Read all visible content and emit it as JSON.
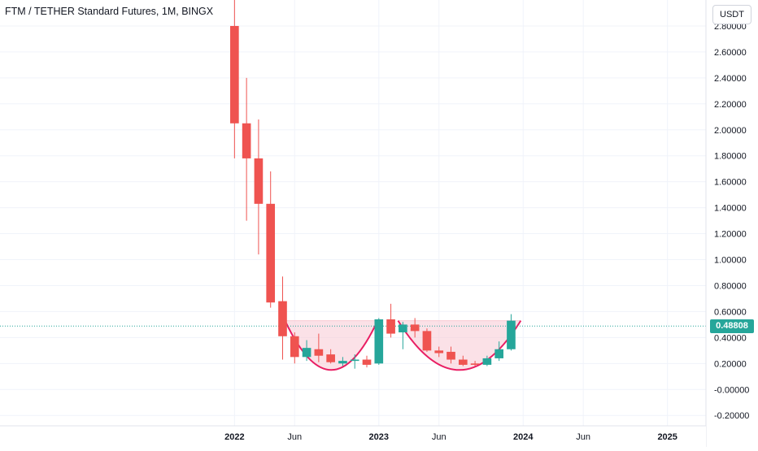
{
  "header": {
    "title": "FTM / TETHER Standard Futures, 1M, BINGX",
    "currency": "USDT"
  },
  "colors": {
    "up": "#26a69a",
    "down": "#ef5350",
    "pattern_fill": "#f8c9d3",
    "pattern_stroke": "#e91e63",
    "grid": "#f0f3fa",
    "price_line": "#26a69a",
    "axis_text": "#131722"
  },
  "chart_data": {
    "type": "candlestick",
    "symbol": "FTM / TETHER Standard Futures",
    "interval": "1M",
    "exchange": "BINGX",
    "y_axis": {
      "ticks": [
        "-0.20000",
        "-0.00000",
        "0.20000",
        "0.40000",
        "0.60000",
        "0.80000",
        "1.00000",
        "1.20000",
        "1.40000",
        "1.60000",
        "1.80000",
        "2.00000",
        "2.20000",
        "2.40000",
        "2.60000",
        "2.80000"
      ],
      "tick_values": [
        -0.2,
        0,
        0.2,
        0.4,
        0.6,
        0.8,
        1.0,
        1.2,
        1.4,
        1.6,
        1.8,
        2.0,
        2.2,
        2.4,
        2.6,
        2.8
      ],
      "range": [
        -0.28,
        3.0
      ]
    },
    "x_axis": {
      "labels": [
        {
          "text": "2022",
          "t": 0,
          "bold": true
        },
        {
          "text": "Jun",
          "t": 5,
          "bold": false
        },
        {
          "text": "2023",
          "t": 12,
          "bold": true
        },
        {
          "text": "Jun",
          "t": 17,
          "bold": false
        },
        {
          "text": "2024",
          "t": 24,
          "bold": true
        },
        {
          "text": "Jun",
          "t": 29,
          "bold": false
        },
        {
          "text": "2025",
          "t": 36,
          "bold": true
        }
      ],
      "range": [
        -19.5,
        39.2
      ]
    },
    "candles": [
      {
        "t": 0,
        "o": 2.8,
        "h": 3.05,
        "l": 1.78,
        "c": 2.05
      },
      {
        "t": 1,
        "o": 2.05,
        "h": 2.4,
        "l": 1.3,
        "c": 1.78
      },
      {
        "t": 2,
        "o": 1.78,
        "h": 2.08,
        "l": 1.04,
        "c": 1.43
      },
      {
        "t": 3,
        "o": 1.43,
        "h": 1.68,
        "l": 0.63,
        "c": 0.67
      },
      {
        "t": 4,
        "o": 0.68,
        "h": 0.87,
        "l": 0.23,
        "c": 0.41
      },
      {
        "t": 5,
        "o": 0.41,
        "h": 0.44,
        "l": 0.2,
        "c": 0.25
      },
      {
        "t": 6,
        "o": 0.25,
        "h": 0.38,
        "l": 0.22,
        "c": 0.32
      },
      {
        "t": 7,
        "o": 0.31,
        "h": 0.43,
        "l": 0.21,
        "c": 0.26
      },
      {
        "t": 8,
        "o": 0.27,
        "h": 0.31,
        "l": 0.2,
        "c": 0.21
      },
      {
        "t": 9,
        "o": 0.2,
        "h": 0.25,
        "l": 0.18,
        "c": 0.22
      },
      {
        "t": 10,
        "o": 0.22,
        "h": 0.27,
        "l": 0.16,
        "c": 0.23
      },
      {
        "t": 11,
        "o": 0.23,
        "h": 0.26,
        "l": 0.17,
        "c": 0.19
      },
      {
        "t": 12,
        "o": 0.2,
        "h": 0.55,
        "l": 0.19,
        "c": 0.54
      },
      {
        "t": 13,
        "o": 0.54,
        "h": 0.66,
        "l": 0.4,
        "c": 0.43
      },
      {
        "t": 14,
        "o": 0.44,
        "h": 0.52,
        "l": 0.31,
        "c": 0.5
      },
      {
        "t": 15,
        "o": 0.5,
        "h": 0.55,
        "l": 0.4,
        "c": 0.45
      },
      {
        "t": 16,
        "o": 0.45,
        "h": 0.47,
        "l": 0.29,
        "c": 0.3
      },
      {
        "t": 17,
        "o": 0.3,
        "h": 0.33,
        "l": 0.25,
        "c": 0.28
      },
      {
        "t": 18,
        "o": 0.29,
        "h": 0.33,
        "l": 0.2,
        "c": 0.23
      },
      {
        "t": 19,
        "o": 0.23,
        "h": 0.26,
        "l": 0.18,
        "c": 0.19
      },
      {
        "t": 20,
        "o": 0.2,
        "h": 0.22,
        "l": 0.18,
        "c": 0.19
      },
      {
        "t": 21,
        "o": 0.19,
        "h": 0.26,
        "l": 0.18,
        "c": 0.24
      },
      {
        "t": 22,
        "o": 0.24,
        "h": 0.37,
        "l": 0.22,
        "c": 0.31
      },
      {
        "t": 23,
        "o": 0.31,
        "h": 0.58,
        "l": 0.3,
        "c": 0.53
      }
    ],
    "last_price": 0.48808,
    "annotations": [
      {
        "type": "cup",
        "t_start": 4.2,
        "t_end": 11.9,
        "rim": 0.53,
        "bottom": 0.15
      },
      {
        "type": "cup",
        "t_start": 13.6,
        "t_end": 23.8,
        "rim": 0.53,
        "bottom": 0.15
      }
    ],
    "grid": true
  }
}
